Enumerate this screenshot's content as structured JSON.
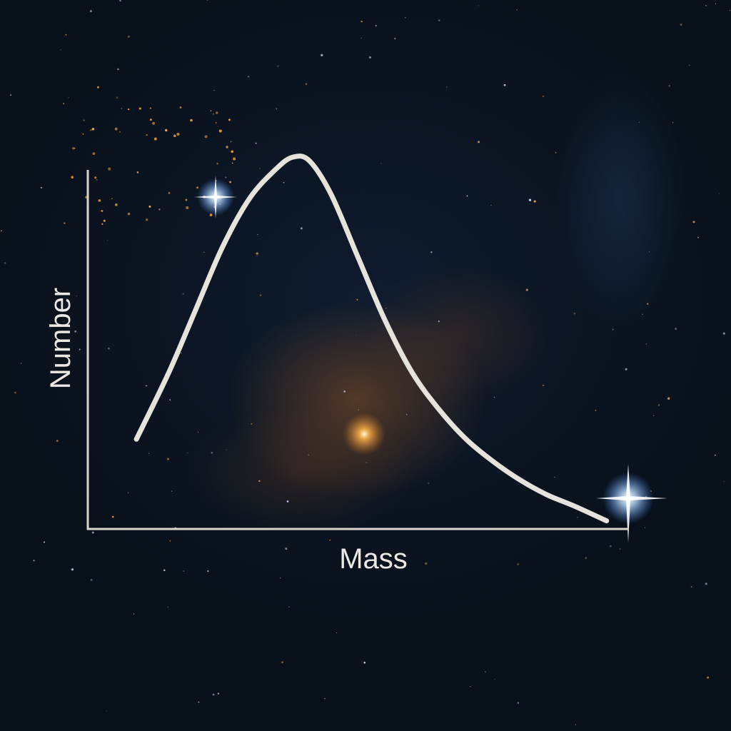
{
  "chart_data": {
    "type": "line",
    "title": "",
    "xlabel": "Mass",
    "ylabel": "Number",
    "xlim": [
      0,
      10
    ],
    "ylim": [
      0,
      10
    ],
    "grid": false,
    "series": [
      {
        "x": [
          0.9,
          1.5,
          2.0,
          2.5,
          3.0,
          3.5,
          3.8,
          4.1,
          4.5,
          5.0,
          5.5,
          6.0,
          6.5,
          7.0,
          7.5,
          8.0,
          8.5,
          9.0,
          9.6
        ],
        "values": [
          2.4,
          4.2,
          5.9,
          7.6,
          8.9,
          9.7,
          10.0,
          9.9,
          9.0,
          7.3,
          5.6,
          4.2,
          3.2,
          2.4,
          1.8,
          1.3,
          0.9,
          0.6,
          0.2
        ]
      }
    ]
  },
  "colors": {
    "curve": "#e6e2dc",
    "axis": "#d9d6d0",
    "background": "#0a1220",
    "nebula": "#c46e28",
    "star_blue": "#9ec9ff"
  }
}
